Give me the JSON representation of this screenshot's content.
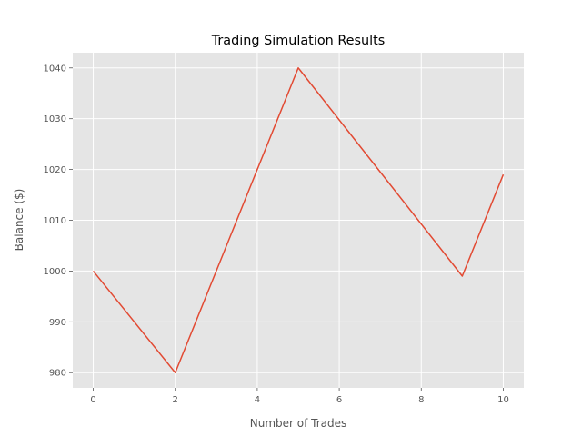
{
  "chart_data": {
    "type": "line",
    "title": "Trading Simulation Results",
    "xlabel": "Number of Trades",
    "ylabel": "Balance ($)",
    "xlim": [
      -0.5,
      10.5
    ],
    "ylim": [
      977.0,
      1043.0
    ],
    "xticks": [
      0,
      2,
      4,
      6,
      8,
      10
    ],
    "yticks": [
      980,
      990,
      1000,
      1010,
      1020,
      1030,
      1040
    ],
    "grid": true,
    "series": [
      {
        "color": "#E24A33",
        "x": [
          0,
          2,
          5,
          9,
          10
        ],
        "y": [
          1000,
          980,
          1040,
          999,
          1019
        ]
      }
    ],
    "colors": {
      "plot_background": "#E5E5E5",
      "grid": "#FFFFFF",
      "text": "#555555",
      "title": "#000000"
    }
  }
}
